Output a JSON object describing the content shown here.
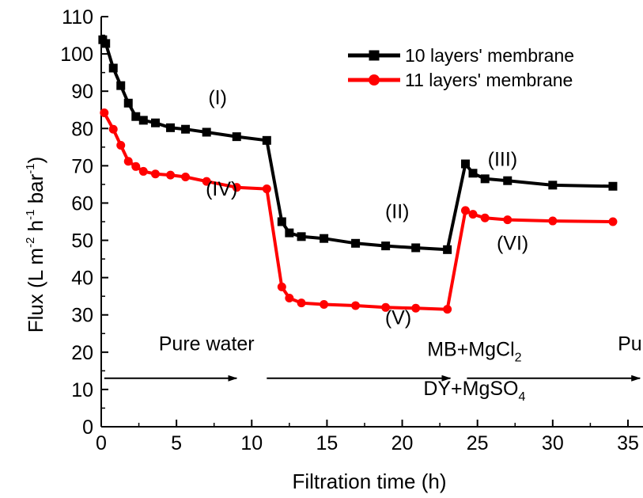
{
  "chart_data": {
    "type": "line",
    "xlabel": "Filtration time (h)",
    "ylabel": {
      "prefix": "Flux (L m",
      "exp1": "-2",
      "mid1": " h",
      "exp2": "-1",
      "mid2": " bar",
      "exp3": "-1",
      "suffix": ")"
    },
    "xlim": [
      0,
      36
    ],
    "ylim": [
      0,
      110
    ],
    "x_ticks": [
      "0",
      "5",
      "10",
      "15",
      "20",
      "25",
      "30",
      "35"
    ],
    "y_ticks": [
      "0",
      "10",
      "20",
      "30",
      "40",
      "50",
      "60",
      "70",
      "80",
      "90",
      "100",
      "110"
    ],
    "legend_position": "top-right",
    "grid": false,
    "series": [
      {
        "name": "10 layers' membrane",
        "color": "#000000",
        "marker": "square",
        "x": [
          0.1,
          0.3,
          0.8,
          1.3,
          1.8,
          2.3,
          2.8,
          3.6,
          4.6,
          5.6,
          7.0,
          9.0,
          11.0,
          12.0,
          12.5,
          13.3,
          14.8,
          16.9,
          18.9,
          20.9,
          23.0,
          24.2,
          24.7,
          25.5,
          27.0,
          30.0,
          34.0
        ],
        "y": [
          103.8,
          102.8,
          96.2,
          91.5,
          86.8,
          83.2,
          82.2,
          81.5,
          80.2,
          79.8,
          79.0,
          77.8,
          76.8,
          55.0,
          52.0,
          51.0,
          50.5,
          49.2,
          48.5,
          48.0,
          47.5,
          70.5,
          68.0,
          66.5,
          66.0,
          64.8,
          64.5
        ]
      },
      {
        "name": "11 layers' membrane",
        "color": "#ff0000",
        "marker": "circle",
        "x": [
          0.2,
          0.8,
          1.3,
          1.8,
          2.3,
          2.8,
          3.6,
          4.6,
          5.6,
          7.0,
          9.0,
          11.0,
          12.0,
          12.5,
          13.3,
          14.8,
          16.9,
          18.9,
          20.9,
          23.0,
          24.2,
          24.7,
          25.5,
          27.0,
          30.0,
          34.0
        ],
        "y": [
          84.2,
          79.8,
          75.5,
          71.2,
          69.8,
          68.5,
          67.8,
          67.5,
          67.0,
          65.8,
          64.2,
          63.8,
          37.5,
          34.5,
          33.2,
          32.8,
          32.5,
          32.0,
          31.8,
          31.5,
          58.0,
          57.0,
          56.0,
          55.5,
          55.2,
          55.0
        ]
      }
    ],
    "annotations": [
      {
        "text": "(I)",
        "x": 11.6,
        "y": 86.5
      },
      {
        "text": "(IV)",
        "x": 12.0,
        "y": 62.0
      },
      {
        "text": "(II)",
        "x": 29.5,
        "y": 56.0
      },
      {
        "text": "(V)",
        "x": 29.6,
        "y": 27.5
      },
      {
        "text": "(III)",
        "x": 40.0,
        "y": 70.0
      },
      {
        "text": "(VI)",
        "x": 41.0,
        "y": 47.5
      }
    ],
    "phase_labels": [
      {
        "parts": [
          "Pure water"
        ],
        "x": 7.0,
        "y": 20.5
      },
      {
        "parts": [
          "MB+MgCl",
          "2"
        ],
        "x": 24.8,
        "y": 19.0
      },
      {
        "parts": [
          "DY+MgSO",
          "4"
        ],
        "x": 24.8,
        "y": 8.5
      },
      {
        "parts": [
          "Pure water"
        ],
        "x": 37.5,
        "y": 20.5
      }
    ],
    "phase_arrows": [
      {
        "x1": 0.2,
        "x2": 9.0,
        "y": 13.0
      },
      {
        "x1": 11.0,
        "x2": 23.2,
        "y": 13.0
      },
      {
        "x1": 24.3,
        "x2": 35.8,
        "y": 13.0
      }
    ]
  }
}
